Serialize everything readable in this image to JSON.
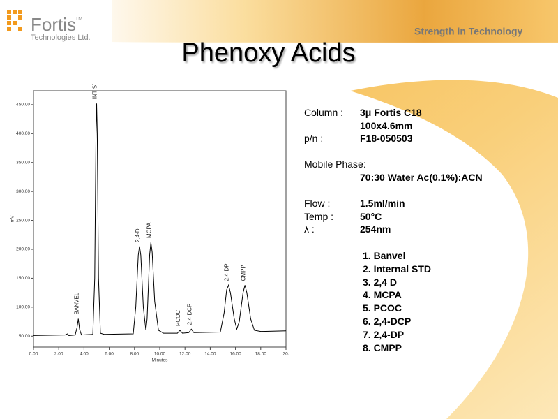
{
  "logo": {
    "name": "Fortis",
    "tm": "TM",
    "subtitle": "Technologies Ltd."
  },
  "tagline": "Strength in Technology",
  "title": "Phenoxy Acids",
  "conditions": [
    {
      "label": "Column :",
      "values": [
        "3μ Fortis C18",
        "100x4.6mm"
      ]
    },
    {
      "label": "p/n :",
      "values": [
        "F18-050503"
      ]
    },
    {
      "label": "Mobile Phase:",
      "values": [
        "70:30 Water Ac(0.1%):ACN"
      ]
    },
    {
      "label": "Flow :",
      "values": [
        "1.5ml/min"
      ]
    },
    {
      "label": "Temp :",
      "values": [
        "50°C"
      ]
    },
    {
      "label": "λ :",
      "values": [
        "254nm"
      ]
    }
  ],
  "peak_list": [
    "1. Banvel",
    "2. Internal STD",
    "3. 2,4 D",
    "4. MCPA",
    "5. PCOC",
    "6. 2,4-DCP",
    "7. 2,4-DP",
    "8. CMPP"
  ],
  "chart_data": {
    "type": "line",
    "x_label": "Minutes",
    "y_label": "mV",
    "color": "#000000",
    "xlim": [
      0,
      20
    ],
    "ylim": [
      31,
      474
    ],
    "xticks": [
      {
        "value": 0,
        "label": "0.00"
      },
      {
        "value": 2,
        "label": "2.00"
      },
      {
        "value": 4,
        "label": "4.00"
      },
      {
        "value": 6,
        "label": "6.00"
      },
      {
        "value": 8,
        "label": "8.00"
      },
      {
        "value": 10,
        "label": "10.00"
      },
      {
        "value": 12,
        "label": "12.00"
      },
      {
        "value": 14,
        "label": "14.00"
      },
      {
        "value": 16,
        "label": "16.00"
      },
      {
        "value": 18,
        "label": "18.00"
      },
      {
        "value": 20,
        "label": "20."
      }
    ],
    "yticks": [
      {
        "value": 50,
        "label": "50.00"
      },
      {
        "value": 100,
        "label": "100.00"
      },
      {
        "value": 150,
        "label": "150.00"
      },
      {
        "value": 200,
        "label": "200.00"
      },
      {
        "value": 250,
        "label": "250.00"
      },
      {
        "value": 300,
        "label": "300.00"
      },
      {
        "value": 350,
        "label": "350.00"
      },
      {
        "value": 400,
        "label": "400.00"
      },
      {
        "value": 450,
        "label": "450.00"
      }
    ],
    "x": [
      0,
      2.5,
      2.7,
      2.8,
      3.3,
      3.45,
      3.55,
      3.65,
      3.8,
      4.7,
      4.85,
      4.95,
      5.0,
      5.05,
      5.15,
      5.3,
      5.6,
      7.9,
      8.1,
      8.3,
      8.4,
      8.5,
      8.7,
      8.9,
      9.0,
      9.2,
      9.3,
      9.4,
      9.6,
      9.9,
      10.3,
      11.4,
      11.6,
      11.8,
      12.3,
      12.5,
      12.7,
      14.8,
      15.1,
      15.3,
      15.45,
      15.6,
      15.9,
      16.1,
      16.3,
      16.6,
      16.75,
      16.9,
      17.2,
      17.5,
      18,
      20
    ],
    "values": [
      51,
      52,
      54,
      51,
      52,
      65,
      80,
      62,
      52,
      53,
      150,
      400,
      452,
      400,
      150,
      55,
      53,
      54,
      100,
      190,
      205,
      190,
      100,
      60,
      80,
      190,
      212,
      195,
      110,
      60,
      55,
      55,
      60,
      55,
      56,
      62,
      56,
      57,
      90,
      130,
      138,
      125,
      80,
      62,
      75,
      125,
      138,
      125,
      80,
      60,
      58,
      59
    ],
    "annotations": [
      {
        "text": "BANVEL",
        "x": 3.55,
        "y": 80
      },
      {
        "text": "INT STD",
        "x": 5.0,
        "y": 452
      },
      {
        "text": "2,4-D",
        "x": 8.4,
        "y": 205
      },
      {
        "text": "MCPA",
        "x": 9.3,
        "y": 212
      },
      {
        "text": "PCOC",
        "x": 11.6,
        "y": 60
      },
      {
        "text": "2,4-DCP",
        "x": 12.5,
        "y": 62
      },
      {
        "text": "2,4-DP",
        "x": 15.45,
        "y": 138
      },
      {
        "text": "CMPP",
        "x": 16.75,
        "y": 138
      }
    ]
  }
}
